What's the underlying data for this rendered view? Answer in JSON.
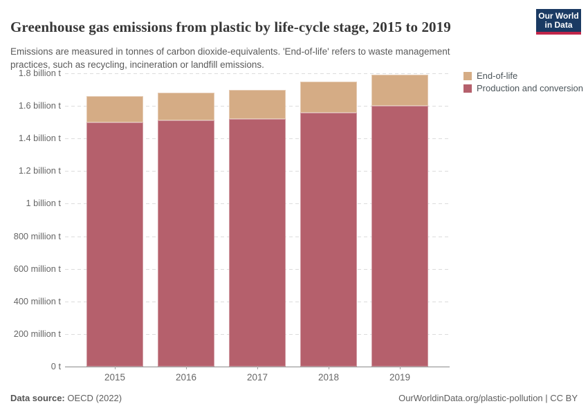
{
  "header": {
    "title": "Greenhouse gas emissions from plastic by life-cycle stage, 2015 to 2019",
    "subtitle_line1": "Emissions are measured in tonnes of carbon dioxide-equivalents. 'End-of-life' refers to waste management",
    "subtitle_line2": "practices, such as recycling, incineration or landfill emissions.",
    "logo": {
      "line1": "Our World",
      "line2": "in Data",
      "bg_color": "#1a3a63",
      "stripe_color": "#c1264a"
    }
  },
  "legend": [
    {
      "label": "End-of-life",
      "color": "#d5ac85"
    },
    {
      "label": "Production and conversion",
      "color": "#b5606c"
    }
  ],
  "chart_data": {
    "type": "bar",
    "stacked": true,
    "title": "Greenhouse gas emissions from plastic by life-cycle stage, 2015 to 2019",
    "unit": "tonnes of carbon dioxide-equivalents",
    "categories": [
      "2015",
      "2016",
      "2017",
      "2018",
      "2019"
    ],
    "series": [
      {
        "name": "Production and conversion",
        "color": "#b5606c",
        "values_billion_t": [
          1.5,
          1.51,
          1.52,
          1.56,
          1.6
        ]
      },
      {
        "name": "End-of-life",
        "color": "#d5ac85",
        "values_billion_t": [
          0.16,
          0.17,
          0.18,
          0.19,
          0.19
        ]
      }
    ],
    "ylim_billion_t": [
      0,
      1.8
    ],
    "y_ticks": [
      {
        "v": 0,
        "label": "0 t"
      },
      {
        "v": 0.2,
        "label": "200 million t"
      },
      {
        "v": 0.4,
        "label": "400 million t"
      },
      {
        "v": 0.6,
        "label": "600 million t"
      },
      {
        "v": 0.8,
        "label": "800 million t"
      },
      {
        "v": 1.0,
        "label": "1 billion t"
      },
      {
        "v": 1.2,
        "label": "1.2 billion t"
      },
      {
        "v": 1.4,
        "label": "1.4 billion t"
      },
      {
        "v": 1.6,
        "label": "1.6 billion t"
      },
      {
        "v": 1.8,
        "label": "1.8 billion t"
      }
    ],
    "grid": "horizontal dashed",
    "legend_position": "top-right"
  },
  "footer": {
    "source_label": "Data source:",
    "source_value": " OECD (2022)",
    "link": "OurWorldinData.org/plastic-pollution | CC BY"
  },
  "colors": {
    "title_text": "#373737",
    "subtitle_text": "#5a5a5a",
    "axis_text": "#666666",
    "gridline": "#dcdcdc",
    "axis_line": "#8a8a8a",
    "background": "#ffffff"
  }
}
